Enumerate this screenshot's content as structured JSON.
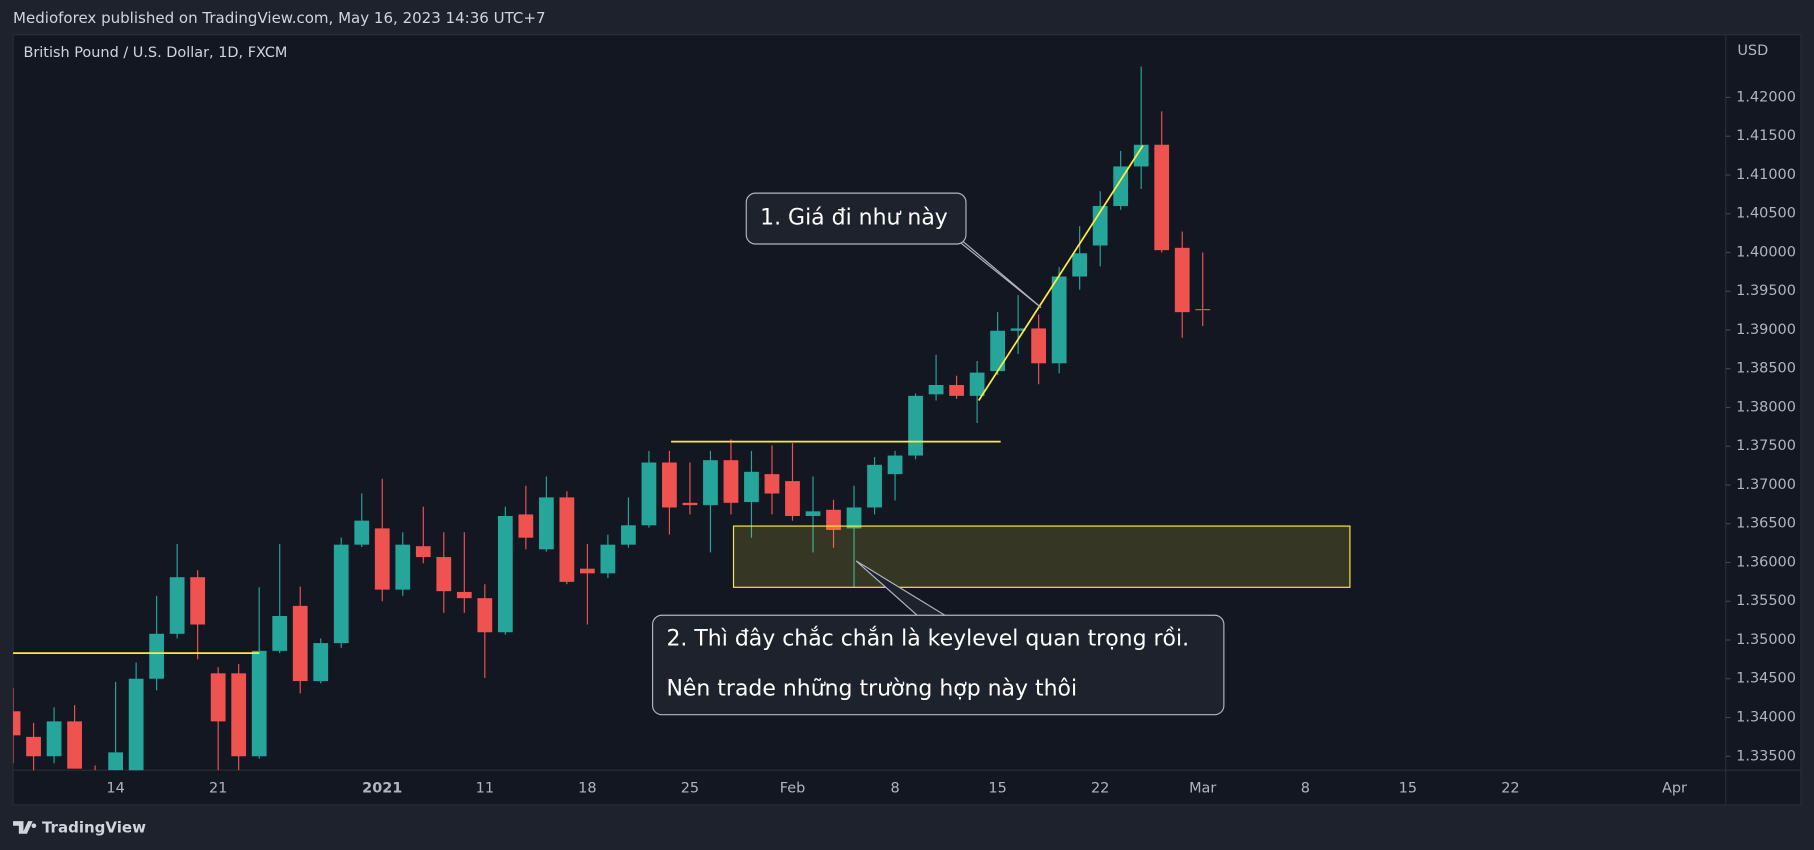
{
  "chart_data": {
    "type": "candlestick",
    "header": "Medioforex published on TradingView.com, May 16, 2023 14:36 UTC+7",
    "title": "British Pound / U.S. Dollar, 1D, FXCM",
    "currency": "USD",
    "brand": "TradingView",
    "up_color": "#26a69a",
    "down_color": "#ef5350",
    "open": [
      1.3408,
      1.3375,
      1.335,
      1.3395,
      1.3325,
      1.3332,
      1.3326,
      1.345,
      1.3508,
      1.3581,
      1.3457,
      1.3457,
      1.335,
      1.3486,
      1.3544,
      1.3447,
      1.3496,
      1.3623,
      1.3644,
      1.3565,
      1.3621,
      1.3607,
      1.3562,
      1.3554,
      1.351,
      1.3662,
      1.3617,
      1.3684,
      1.3592,
      1.3586,
      1.3623,
      1.3648,
      1.3729,
      1.3677,
      1.3674,
      1.3732,
      1.3678,
      1.3714,
      1.3705,
      1.366,
      1.3668,
      1.3644,
      1.3671,
      1.3714,
      1.3738,
      1.3817,
      1.3829,
      1.3815,
      1.3847,
      1.3899,
      1.3902,
      1.3857,
      1.3969,
      1.4009,
      1.406,
      1.4111,
      1.4139,
      1.4006,
      1.3927
    ],
    "high": [
      1.3438,
      1.3393,
      1.3413,
      1.3416,
      1.3338,
      1.3446,
      1.3471,
      1.3557,
      1.3624,
      1.359,
      1.3465,
      1.3469,
      1.3568,
      1.3624,
      1.3569,
      1.3502,
      1.3632,
      1.3689,
      1.3708,
      1.3639,
      1.3672,
      1.3639,
      1.3639,
      1.3572,
      1.3672,
      1.3699,
      1.3711,
      1.3692,
      1.3624,
      1.3636,
      1.3684,
      1.3744,
      1.3744,
      1.3729,
      1.3744,
      1.3759,
      1.3744,
      1.3751,
      1.3754,
      1.3711,
      1.3681,
      1.3699,
      1.3736,
      1.3744,
      1.3818,
      1.3868,
      1.3841,
      1.386,
      1.3923,
      1.3945,
      1.392,
      1.3981,
      1.4034,
      1.4079,
      1.4131,
      1.424,
      1.4182,
      1.4027,
      1.4
    ],
    "low": [
      1.3341,
      1.3326,
      1.3341,
      1.3334,
      1.329,
      1.3323,
      1.3326,
      1.3435,
      1.3502,
      1.3475,
      1.3332,
      1.3332,
      1.3347,
      1.3483,
      1.3431,
      1.3444,
      1.349,
      1.362,
      1.355,
      1.3557,
      1.3599,
      1.3535,
      1.3535,
      1.3451,
      1.3507,
      1.3617,
      1.3614,
      1.3572,
      1.352,
      1.358,
      1.3619,
      1.3645,
      1.3636,
      1.3662,
      1.3613,
      1.3662,
      1.3632,
      1.3662,
      1.3654,
      1.3613,
      1.3619,
      1.3568,
      1.3662,
      1.368,
      1.3733,
      1.3809,
      1.3811,
      1.378,
      1.3842,
      1.3869,
      1.383,
      1.3844,
      1.3952,
      1.3982,
      1.4055,
      1.4082,
      1.4,
      1.389,
      1.3905
    ],
    "close": [
      1.3377,
      1.335,
      1.3395,
      1.3334,
      1.3305,
      1.3355,
      1.345,
      1.3508,
      1.3581,
      1.352,
      1.3395,
      1.335,
      1.3486,
      1.3531,
      1.3447,
      1.3496,
      1.3623,
      1.3654,
      1.3565,
      1.3623,
      1.3607,
      1.3563,
      1.3554,
      1.351,
      1.366,
      1.3632,
      1.3684,
      1.3575,
      1.3586,
      1.3623,
      1.3648,
      1.3729,
      1.3671,
      1.3674,
      1.3732,
      1.3677,
      1.3717,
      1.3689,
      1.366,
      1.3666,
      1.3642,
      1.3671,
      1.3726,
      1.3738,
      1.3815,
      1.3829,
      1.3815,
      1.3845,
      1.3899,
      1.3902,
      1.3857,
      1.3969,
      1.3999,
      1.406,
      1.4111,
      1.4139,
      1.4003,
      1.3923,
      1.3926
    ],
    "xlim": [
      0,
      83.5
    ],
    "xticks": [
      {
        "value": 5,
        "label": "14"
      },
      {
        "value": 10,
        "label": "21"
      },
      {
        "value": 18,
        "label": "2021"
      },
      {
        "value": 23,
        "label": "11"
      },
      {
        "value": 28,
        "label": "18"
      },
      {
        "value": 33,
        "label": "25"
      },
      {
        "value": 38,
        "label": "Feb"
      },
      {
        "value": 43,
        "label": "8"
      },
      {
        "value": 48,
        "label": "15"
      },
      {
        "value": 53,
        "label": "22"
      },
      {
        "value": 58,
        "label": "Mar"
      },
      {
        "value": 63,
        "label": "8"
      },
      {
        "value": 68,
        "label": "15"
      },
      {
        "value": 73,
        "label": "22"
      },
      {
        "value": 81,
        "label": "Apr"
      }
    ],
    "ylim": [
      1.3332,
      1.4281
    ],
    "yticks": [
      {
        "value": 1.335,
        "label": "1.33500"
      },
      {
        "value": 1.34,
        "label": "1.34000"
      },
      {
        "value": 1.345,
        "label": "1.34500"
      },
      {
        "value": 1.35,
        "label": "1.35000"
      },
      {
        "value": 1.355,
        "label": "1.35500"
      },
      {
        "value": 1.36,
        "label": "1.36000"
      },
      {
        "value": 1.365,
        "label": "1.36500"
      },
      {
        "value": 1.37,
        "label": "1.37000"
      },
      {
        "value": 1.375,
        "label": "1.37500"
      },
      {
        "value": 1.38,
        "label": "1.38000"
      },
      {
        "value": 1.385,
        "label": "1.38500"
      },
      {
        "value": 1.39,
        "label": "1.39000"
      },
      {
        "value": 1.395,
        "label": "1.39500"
      },
      {
        "value": 1.4,
        "label": "1.40000"
      },
      {
        "value": 1.405,
        "label": "1.40500"
      },
      {
        "value": 1.41,
        "label": "1.41000"
      },
      {
        "value": 1.415,
        "label": "1.41500"
      },
      {
        "value": 1.42,
        "label": "1.42000"
      }
    ],
    "levels": [
      1.3483,
      1.3756
    ],
    "zone": [
      1.3647,
      1.3568
    ],
    "trend": [
      1.3809,
      1.4138
    ],
    "drawing_color": "#ffeb3b",
    "annotations": [
      {
        "text": "1. Giá đi như này"
      },
      {
        "lines": [
          "2. Thì đây chắc chắn là keylevel quan trọng rồi.",
          "Nên trade những trường hợp này thôi"
        ]
      }
    ]
  }
}
